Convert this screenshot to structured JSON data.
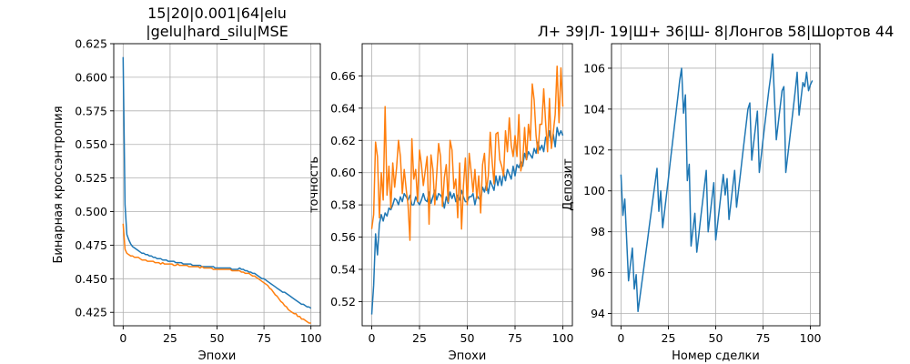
{
  "colors": {
    "series1": "#1f77b4",
    "series2": "#ff7f0e",
    "grid": "#b0b0b0"
  },
  "chart_data": [
    {
      "type": "line",
      "title": [
        "15|20|0.001|64|elu",
        "|gelu|hard_silu|MSE"
      ],
      "xlabel": "Эпохи",
      "ylabel": "Бинарная кроссэнтропия",
      "xlim": [
        -5,
        105
      ],
      "ylim": [
        0.415,
        0.625
      ],
      "xticks": [
        0,
        25,
        50,
        75,
        100
      ],
      "yticks": [
        0.425,
        0.45,
        0.475,
        0.5,
        0.525,
        0.55,
        0.575,
        0.6,
        0.625
      ],
      "ytick_labels": [
        "0.425",
        "0.450",
        "0.475",
        "0.500",
        "0.525",
        "0.550",
        "0.575",
        "0.600",
        "0.625"
      ],
      "grid": true,
      "series": [
        {
          "color": "#1f77b4",
          "x_start": 0,
          "values": [
            0.615,
            0.505,
            0.483,
            0.479,
            0.476,
            0.474,
            0.473,
            0.472,
            0.471,
            0.47,
            0.469,
            0.469,
            0.468,
            0.468,
            0.467,
            0.467,
            0.466,
            0.466,
            0.465,
            0.465,
            0.465,
            0.464,
            0.464,
            0.464,
            0.463,
            0.463,
            0.463,
            0.463,
            0.462,
            0.462,
            0.462,
            0.462,
            0.461,
            0.461,
            0.461,
            0.461,
            0.461,
            0.46,
            0.46,
            0.46,
            0.46,
            0.46,
            0.459,
            0.459,
            0.459,
            0.459,
            0.459,
            0.459,
            0.459,
            0.458,
            0.458,
            0.458,
            0.458,
            0.458,
            0.458,
            0.458,
            0.458,
            0.458,
            0.457,
            0.457,
            0.457,
            0.457,
            0.458,
            0.457,
            0.457,
            0.456,
            0.456,
            0.455,
            0.455,
            0.454,
            0.454,
            0.453,
            0.452,
            0.451,
            0.45,
            0.45,
            0.449,
            0.448,
            0.447,
            0.446,
            0.445,
            0.444,
            0.443,
            0.442,
            0.441,
            0.44,
            0.44,
            0.439,
            0.438,
            0.437,
            0.436,
            0.435,
            0.434,
            0.433,
            0.432,
            0.431,
            0.431,
            0.43,
            0.429,
            0.429,
            0.428
          ]
        },
        {
          "color": "#ff7f0e",
          "x_start": 0,
          "values": [
            0.491,
            0.472,
            0.469,
            0.468,
            0.467,
            0.467,
            0.466,
            0.466,
            0.466,
            0.465,
            0.464,
            0.464,
            0.464,
            0.463,
            0.463,
            0.463,
            0.463,
            0.462,
            0.462,
            0.462,
            0.461,
            0.462,
            0.461,
            0.461,
            0.461,
            0.461,
            0.461,
            0.46,
            0.46,
            0.461,
            0.46,
            0.46,
            0.46,
            0.46,
            0.46,
            0.459,
            0.459,
            0.459,
            0.459,
            0.459,
            0.459,
            0.458,
            0.459,
            0.458,
            0.458,
            0.458,
            0.458,
            0.458,
            0.457,
            0.457,
            0.457,
            0.457,
            0.457,
            0.457,
            0.457,
            0.457,
            0.457,
            0.457,
            0.456,
            0.456,
            0.456,
            0.456,
            0.456,
            0.455,
            0.455,
            0.454,
            0.454,
            0.454,
            0.453,
            0.452,
            0.452,
            0.451,
            0.45,
            0.449,
            0.448,
            0.447,
            0.446,
            0.445,
            0.443,
            0.442,
            0.44,
            0.438,
            0.437,
            0.435,
            0.433,
            0.432,
            0.43,
            0.429,
            0.427,
            0.426,
            0.425,
            0.424,
            0.424,
            0.422,
            0.422,
            0.42,
            0.42,
            0.419,
            0.418,
            0.417,
            0.417
          ]
        }
      ]
    },
    {
      "type": "line",
      "title": [],
      "xlabel": "Эпохи",
      "ylabel": "точность",
      "xlim": [
        -5,
        105
      ],
      "ylim": [
        0.505,
        0.68
      ],
      "xticks": [
        0,
        25,
        50,
        75,
        100
      ],
      "yticks": [
        0.52,
        0.54,
        0.56,
        0.58,
        0.6,
        0.62,
        0.64,
        0.66
      ],
      "ytick_labels": [
        "0.52",
        "0.54",
        "0.56",
        "0.58",
        "0.60",
        "0.62",
        "0.64",
        "0.66"
      ],
      "grid": true,
      "series": [
        {
          "color": "#1f77b4",
          "x_start": 0,
          "values": [
            0.512,
            0.53,
            0.562,
            0.549,
            0.568,
            0.574,
            0.57,
            0.575,
            0.573,
            0.578,
            0.577,
            0.58,
            0.584,
            0.583,
            0.58,
            0.585,
            0.582,
            0.587,
            0.585,
            0.583,
            0.586,
            0.58,
            0.58,
            0.585,
            0.582,
            0.58,
            0.583,
            0.587,
            0.583,
            0.582,
            0.588,
            0.581,
            0.585,
            0.589,
            0.583,
            0.587,
            0.586,
            0.584,
            0.578,
            0.585,
            0.581,
            0.588,
            0.584,
            0.587,
            0.582,
            0.586,
            0.583,
            0.589,
            0.585,
            0.582,
            0.582,
            0.585,
            0.585,
            0.587,
            0.58,
            0.586,
            0.584,
            0.583,
            0.591,
            0.588,
            0.593,
            0.587,
            0.595,
            0.592,
            0.589,
            0.598,
            0.592,
            0.598,
            0.592,
            0.6,
            0.595,
            0.602,
            0.599,
            0.596,
            0.604,
            0.598,
            0.605,
            0.603,
            0.607,
            0.604,
            0.612,
            0.608,
            0.613,
            0.611,
            0.609,
            0.615,
            0.612,
            0.619,
            0.614,
            0.617,
            0.613,
            0.622,
            0.619,
            0.626,
            0.617,
            0.624,
            0.616,
            0.628,
            0.623,
            0.626,
            0.623
          ]
        },
        {
          "color": "#ff7f0e",
          "x_start": 0,
          "values": [
            0.565,
            0.574,
            0.619,
            0.61,
            0.572,
            0.6,
            0.583,
            0.641,
            0.586,
            0.604,
            0.578,
            0.606,
            0.591,
            0.603,
            0.62,
            0.61,
            0.587,
            0.602,
            0.59,
            0.58,
            0.558,
            0.621,
            0.596,
            0.602,
            0.582,
            0.614,
            0.605,
            0.592,
            0.601,
            0.61,
            0.568,
            0.611,
            0.602,
            0.58,
            0.599,
            0.618,
            0.61,
            0.579,
            0.597,
            0.605,
            0.582,
            0.62,
            0.614,
            0.59,
            0.596,
            0.572,
            0.606,
            0.565,
            0.592,
            0.609,
            0.58,
            0.612,
            0.601,
            0.588,
            0.602,
            0.584,
            0.598,
            0.575,
            0.605,
            0.612,
            0.589,
            0.598,
            0.625,
            0.607,
            0.593,
            0.624,
            0.625,
            0.608,
            0.604,
            0.598,
            0.626,
            0.613,
            0.634,
            0.617,
            0.61,
            0.623,
            0.61,
            0.636,
            0.601,
            0.607,
            0.628,
            0.608,
            0.63,
            0.62,
            0.655,
            0.645,
            0.623,
            0.612,
            0.63,
            0.63,
            0.652,
            0.631,
            0.613,
            0.646,
            0.615,
            0.625,
            0.636,
            0.666,
            0.631,
            0.665,
            0.641
          ]
        }
      ]
    },
    {
      "type": "line",
      "title": [
        "Л+ 39|Л- 19|Ш+ 36|Ш- 8|Лонгов 58|Шортов 44"
      ],
      "xlabel": "Номер сделки",
      "ylabel": "Депозит",
      "xlim": [
        -5,
        105
      ],
      "ylim": [
        93.4,
        107.2
      ],
      "xticks": [
        0,
        25,
        50,
        75,
        100
      ],
      "yticks": [
        94,
        96,
        98,
        100,
        102,
        104,
        106
      ],
      "ytick_labels": [
        "94",
        "96",
        "98",
        "100",
        "102",
        "104",
        "106"
      ],
      "grid": true,
      "series": [
        {
          "color": "#1f77b4",
          "x": [
            0,
            1,
            2,
            4,
            5,
            6,
            7,
            8,
            9,
            10,
            11,
            12,
            13,
            14,
            15,
            16,
            17,
            18,
            19,
            20,
            21,
            22,
            23,
            24,
            25,
            26,
            27,
            28,
            29,
            30,
            31,
            32,
            33,
            34,
            35,
            36,
            37,
            38,
            39,
            40,
            41,
            42,
            43,
            44,
            45,
            46,
            47,
            48,
            49,
            50,
            51,
            52,
            53,
            54,
            55,
            56,
            57,
            58,
            59,
            60,
            61,
            62,
            63,
            64,
            65,
            66,
            67,
            68,
            69,
            70,
            71,
            72,
            73,
            74,
            75,
            76,
            77,
            78,
            79,
            80,
            81,
            82,
            83,
            84,
            85,
            86,
            87,
            88,
            89,
            90,
            91,
            92,
            93,
            94,
            95,
            96,
            97,
            98,
            99,
            100,
            101
          ],
          "values": [
            100.8,
            98.8,
            99.6,
            95.6,
            96.4,
            97.2,
            95.2,
            95.9,
            94.1,
            94.8,
            95.5,
            96.2,
            96.9,
            97.6,
            98.3,
            99.0,
            99.7,
            100.4,
            101.1,
            99.0,
            100.0,
            98.2,
            99.0,
            99.8,
            100.6,
            101.4,
            102.2,
            103.0,
            103.8,
            104.6,
            105.4,
            106.0,
            103.8,
            104.7,
            100.5,
            101.3,
            97.3,
            98.1,
            98.9,
            97.0,
            97.8,
            98.6,
            99.4,
            100.2,
            101.0,
            98.0,
            98.8,
            99.6,
            100.4,
            97.6,
            98.4,
            99.2,
            100.0,
            100.8,
            99.8,
            100.6,
            98.6,
            99.4,
            100.2,
            101.0,
            99.2,
            100.0,
            100.8,
            101.6,
            102.4,
            103.2,
            104.0,
            104.3,
            101.5,
            102.3,
            103.1,
            103.9,
            100.9,
            101.7,
            102.5,
            103.3,
            104.1,
            104.9,
            105.6,
            106.7,
            104.6,
            102.5,
            103.3,
            104.1,
            104.9,
            105.1,
            100.9,
            101.7,
            102.5,
            103.3,
            104.1,
            104.9,
            105.8,
            103.7,
            104.5,
            105.3,
            105.1,
            105.8,
            104.9,
            105.2,
            105.4
          ]
        }
      ]
    }
  ]
}
